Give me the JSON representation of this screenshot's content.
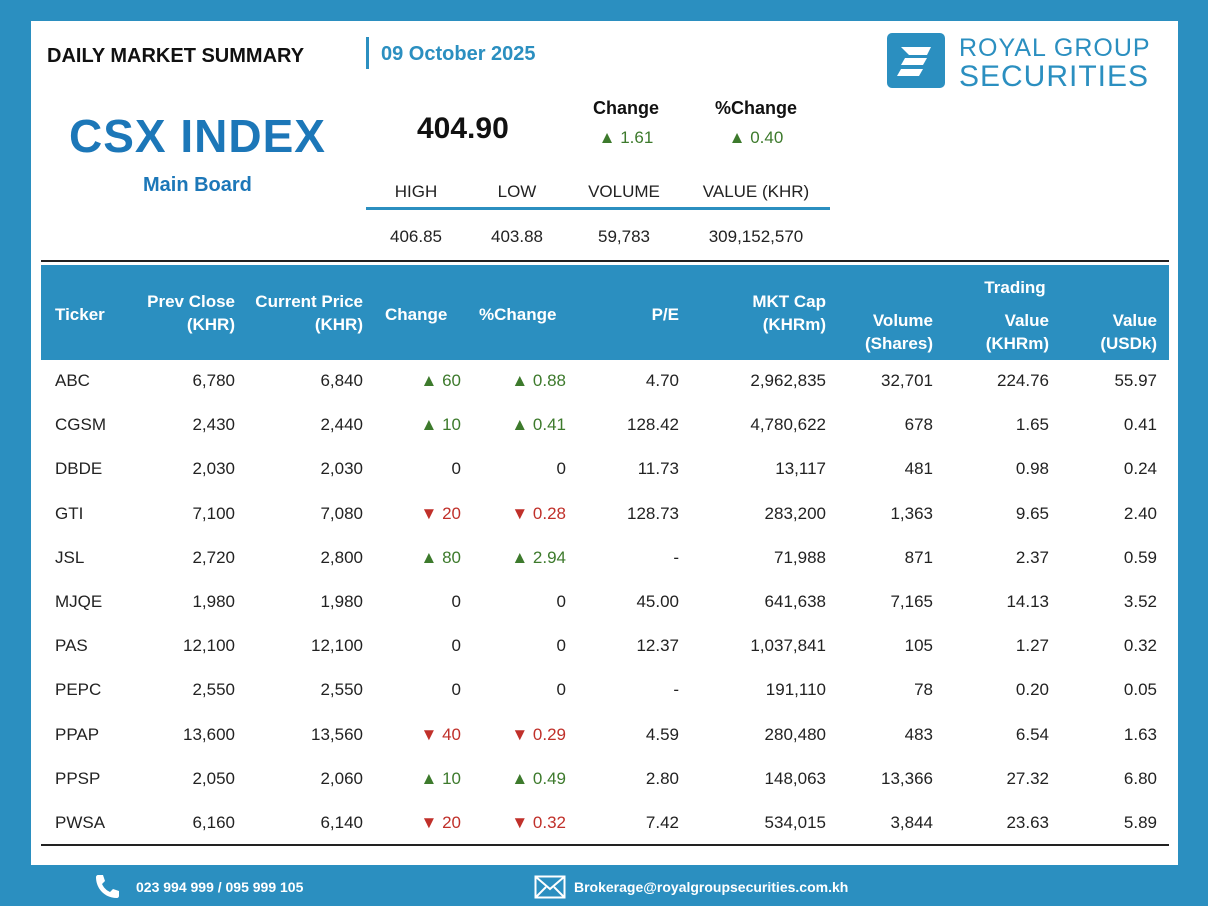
{
  "header": {
    "title": "DAILY MARKET SUMMARY",
    "date": "09 October 2025",
    "logo_line1": "ROYAL GROUP",
    "logo_line2": "SECURITIES"
  },
  "index": {
    "name": "CSX INDEX",
    "board": "Main Board",
    "value": "404.90",
    "change_label": "Change",
    "change_value": "▲ 1.61",
    "pct_change_label": "%Change",
    "pct_change_value": "▲ 0.40",
    "stats": [
      {
        "label": "HIGH",
        "value": "406.85"
      },
      {
        "label": "LOW",
        "value": "403.88"
      },
      {
        "label": "VOLUME",
        "value": "59,783"
      },
      {
        "label": "VALUE (KHR)",
        "value": "309,152,570"
      }
    ]
  },
  "table": {
    "headers": {
      "ticker": "Ticker",
      "prev_close_1": "Prev Close",
      "prev_close_2": "(KHR)",
      "current_1": "Current Price",
      "current_2": "(KHR)",
      "change": "Change",
      "pct_change": "%Change",
      "pe": "P/E",
      "mkt_cap_1": "MKT Cap",
      "mkt_cap_2": "(KHRm)",
      "volume_1": "Volume",
      "volume_2": "(Shares)",
      "trading": "Trading",
      "value_khr_1": "Value",
      "value_khr_2": "(KHRm)",
      "value_usd_1": "Value",
      "value_usd_2": "(USDk)"
    },
    "rows": [
      {
        "ticker": "ABC",
        "prev": "6,780",
        "cur": "6,840",
        "chg": "▲ 60",
        "pct": "▲ 0.88",
        "dir": "up",
        "pe": "4.70",
        "cap": "2,962,835",
        "vol": "32,701",
        "vkhr": "224.76",
        "vusd": "55.97"
      },
      {
        "ticker": "CGSM",
        "prev": "2,430",
        "cur": "2,440",
        "chg": "▲ 10",
        "pct": "▲ 0.41",
        "dir": "up",
        "pe": "128.42",
        "cap": "4,780,622",
        "vol": "678",
        "vkhr": "1.65",
        "vusd": "0.41"
      },
      {
        "ticker": "DBDE",
        "prev": "2,030",
        "cur": "2,030",
        "chg": "0",
        "pct": "0",
        "dir": "flat",
        "pe": "11.73",
        "cap": "13,117",
        "vol": "481",
        "vkhr": "0.98",
        "vusd": "0.24"
      },
      {
        "ticker": "GTI",
        "prev": "7,100",
        "cur": "7,080",
        "chg": "▼ 20",
        "pct": "▼ 0.28",
        "dir": "down",
        "pe": "128.73",
        "cap": "283,200",
        "vol": "1,363",
        "vkhr": "9.65",
        "vusd": "2.40"
      },
      {
        "ticker": "JSL",
        "prev": "2,720",
        "cur": "2,800",
        "chg": "▲ 80",
        "pct": "▲ 2.94",
        "dir": "up",
        "pe": "-",
        "cap": "71,988",
        "vol": "871",
        "vkhr": "2.37",
        "vusd": "0.59"
      },
      {
        "ticker": "MJQE",
        "prev": "1,980",
        "cur": "1,980",
        "chg": "0",
        "pct": "0",
        "dir": "flat",
        "pe": "45.00",
        "cap": "641,638",
        "vol": "7,165",
        "vkhr": "14.13",
        "vusd": "3.52"
      },
      {
        "ticker": "PAS",
        "prev": "12,100",
        "cur": "12,100",
        "chg": "0",
        "pct": "0",
        "dir": "flat",
        "pe": "12.37",
        "cap": "1,037,841",
        "vol": "105",
        "vkhr": "1.27",
        "vusd": "0.32"
      },
      {
        "ticker": "PEPC",
        "prev": "2,550",
        "cur": "2,550",
        "chg": "0",
        "pct": "0",
        "dir": "flat",
        "pe": "-",
        "cap": "191,110",
        "vol": "78",
        "vkhr": "0.20",
        "vusd": "0.05"
      },
      {
        "ticker": "PPAP",
        "prev": "13,600",
        "cur": "13,560",
        "chg": "▼ 40",
        "pct": "▼ 0.29",
        "dir": "down",
        "pe": "4.59",
        "cap": "280,480",
        "vol": "483",
        "vkhr": "6.54",
        "vusd": "1.63"
      },
      {
        "ticker": "PPSP",
        "prev": "2,050",
        "cur": "2,060",
        "chg": "▲ 10",
        "pct": "▲ 0.49",
        "dir": "up",
        "pe": "2.80",
        "cap": "148,063",
        "vol": "13,366",
        "vkhr": "27.32",
        "vusd": "6.80"
      },
      {
        "ticker": "PWSA",
        "prev": "6,160",
        "cur": "6,140",
        "chg": "▼ 20",
        "pct": "▼ 0.32",
        "dir": "down",
        "pe": "7.42",
        "cap": "534,015",
        "vol": "3,844",
        "vkhr": "23.63",
        "vusd": "5.89"
      }
    ]
  },
  "footer": {
    "phone": "023 994 999 / 095 999 105",
    "email": "Brokerage@royalgroupsecurities.com.kh"
  },
  "colors": {
    "brand": "#2b8fc0",
    "index_title": "#1c77b8",
    "up": "#3d7a2c",
    "down": "#c0302a"
  }
}
